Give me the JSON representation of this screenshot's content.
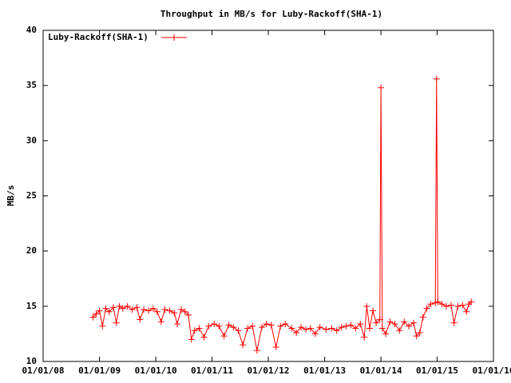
{
  "chart_data": {
    "type": "line",
    "title": "Throughput in MB/s for Luby-Rackoff(SHA-1)",
    "y_label": "MB/s",
    "x": [
      "2008-11-20",
      "2008-12-10",
      "2009-01-01",
      "2009-01-20",
      "2009-02-10",
      "2009-03-05",
      "2009-04-01",
      "2009-04-20",
      "2009-05-10",
      "2009-06-01",
      "2009-07-01",
      "2009-08-01",
      "2009-09-01",
      "2009-09-20",
      "2009-10-15",
      "2009-11-15",
      "2009-12-15",
      "2010-01-10",
      "2010-02-05",
      "2010-03-01",
      "2010-04-01",
      "2010-05-01",
      "2010-05-20",
      "2010-06-15",
      "2010-07-10",
      "2010-08-01",
      "2010-08-20",
      "2010-09-10",
      "2010-10-10",
      "2010-11-10",
      "2010-12-10",
      "2011-01-15",
      "2011-02-15",
      "2011-03-20",
      "2011-04-20",
      "2011-05-20",
      "2011-06-20",
      "2011-07-20",
      "2011-08-20",
      "2011-09-20",
      "2011-10-20",
      "2011-11-20",
      "2011-12-20",
      "2012-01-20",
      "2012-02-20",
      "2012-03-20",
      "2012-04-20",
      "2012-06-01",
      "2012-07-01",
      "2012-08-01",
      "2012-09-01",
      "2012-10-01",
      "2012-11-01",
      "2012-12-01",
      "2013-01-10",
      "2013-02-15",
      "2013-03-20",
      "2013-04-20",
      "2013-05-20",
      "2013-06-20",
      "2013-07-20",
      "2013-08-20",
      "2013-09-15",
      "2013-10-01",
      "2013-10-20",
      "2013-11-10",
      "2013-12-01",
      "2013-12-25",
      "2014-01-01",
      "2014-01-10",
      "2014-02-01",
      "2014-03-01",
      "2014-04-01",
      "2014-05-01",
      "2014-06-01",
      "2014-07-01",
      "2014-08-01",
      "2014-08-20",
      "2014-09-10",
      "2014-10-01",
      "2014-10-25",
      "2014-11-20",
      "2014-12-20",
      "2014-12-28",
      "2015-01-05",
      "2015-02-01",
      "2015-03-01",
      "2015-04-01",
      "2015-04-20",
      "2015-05-15",
      "2015-06-15",
      "2015-07-10",
      "2015-07-25",
      "2015-08-10"
    ],
    "series": [
      {
        "name": "Luby-Rackoff(SHA-1)",
        "color": "#ff0000",
        "values": [
          14.0,
          14.3,
          14.6,
          13.2,
          14.8,
          14.5,
          14.9,
          13.5,
          15.0,
          14.8,
          15.0,
          14.7,
          14.9,
          13.8,
          14.7,
          14.6,
          14.8,
          14.5,
          13.6,
          14.7,
          14.6,
          14.4,
          13.4,
          14.7,
          14.5,
          14.2,
          12.0,
          12.8,
          13.0,
          12.2,
          13.2,
          13.4,
          13.2,
          12.3,
          13.3,
          13.1,
          12.8,
          11.5,
          13.0,
          13.2,
          11.0,
          13.1,
          13.4,
          13.3,
          11.3,
          13.2,
          13.4,
          13.0,
          12.6,
          13.1,
          12.9,
          13.0,
          12.5,
          13.1,
          12.9,
          13.0,
          12.8,
          13.1,
          13.2,
          13.3,
          13.0,
          13.4,
          12.2,
          15.0,
          13.0,
          14.6,
          13.5,
          13.8,
          34.8,
          13.0,
          12.5,
          13.6,
          13.4,
          12.8,
          13.6,
          13.2,
          13.5,
          12.3,
          12.6,
          14.0,
          14.8,
          15.2,
          15.3,
          35.6,
          15.4,
          15.2,
          15.0,
          15.1,
          13.5,
          15.0,
          15.1,
          14.5,
          15.2,
          15.4
        ]
      }
    ],
    "xlim": [
      "2008-01-01",
      "2016-01-01"
    ],
    "xticks": [
      {
        "value": "2008-01-01",
        "label": "01/01/08"
      },
      {
        "value": "2009-01-01",
        "label": "01/01/09"
      },
      {
        "value": "2010-01-01",
        "label": "01/01/10"
      },
      {
        "value": "2011-01-01",
        "label": "01/01/11"
      },
      {
        "value": "2012-01-01",
        "label": "01/01/12"
      },
      {
        "value": "2013-01-01",
        "label": "01/01/13"
      },
      {
        "value": "2014-01-01",
        "label": "01/01/14"
      },
      {
        "value": "2015-01-01",
        "label": "01/01/15"
      },
      {
        "value": "2016-01-01",
        "label": "01/01/16"
      }
    ],
    "ylim": [
      10,
      40
    ],
    "yticks": [
      10,
      15,
      20,
      25,
      30,
      35,
      40
    ],
    "legend": "top-left"
  }
}
